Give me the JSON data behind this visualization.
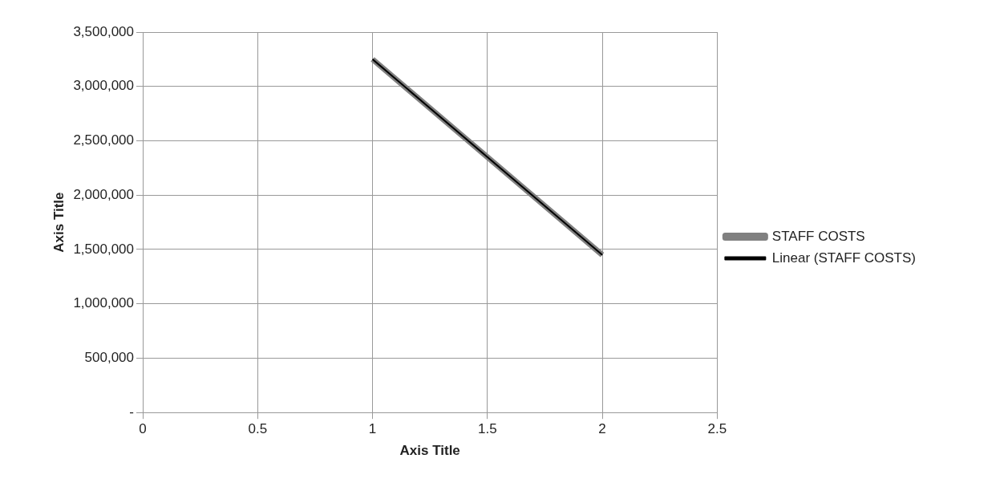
{
  "chart_data": {
    "type": "line",
    "xlabel": "Axis Title",
    "ylabel": "Axis Title",
    "series": [
      {
        "name": "STAFF COSTS",
        "color": "#808080",
        "values": [
          3250000,
          1450000
        ]
      },
      {
        "name": "Linear (STAFF COSTS)",
        "type": "line",
        "color": "#000000",
        "x": [
          1,
          2
        ],
        "values": [
          3250000,
          1450000
        ]
      }
    ],
    "x": [
      1,
      2
    ],
    "xlim": [
      0,
      2.5
    ],
    "xticks": [
      0,
      0.5,
      1,
      1.5,
      2,
      2.5
    ],
    "ylim": [
      0,
      3500000
    ],
    "yticks": [
      {
        "value": 0,
        "label": "-"
      },
      {
        "value": 500000,
        "label": "500,000"
      },
      {
        "value": 1000000,
        "label": "1,000,000"
      },
      {
        "value": 1500000,
        "label": "1,500,000"
      },
      {
        "value": 2000000,
        "label": "2,000,000"
      },
      {
        "value": 2500000,
        "label": "2,500,000"
      },
      {
        "value": 3000000,
        "label": "3,000,000"
      },
      {
        "value": 3500000,
        "label": "3,500,000"
      }
    ],
    "grid": true,
    "legend": "right",
    "marker": "none",
    "line_style": "solid"
  }
}
